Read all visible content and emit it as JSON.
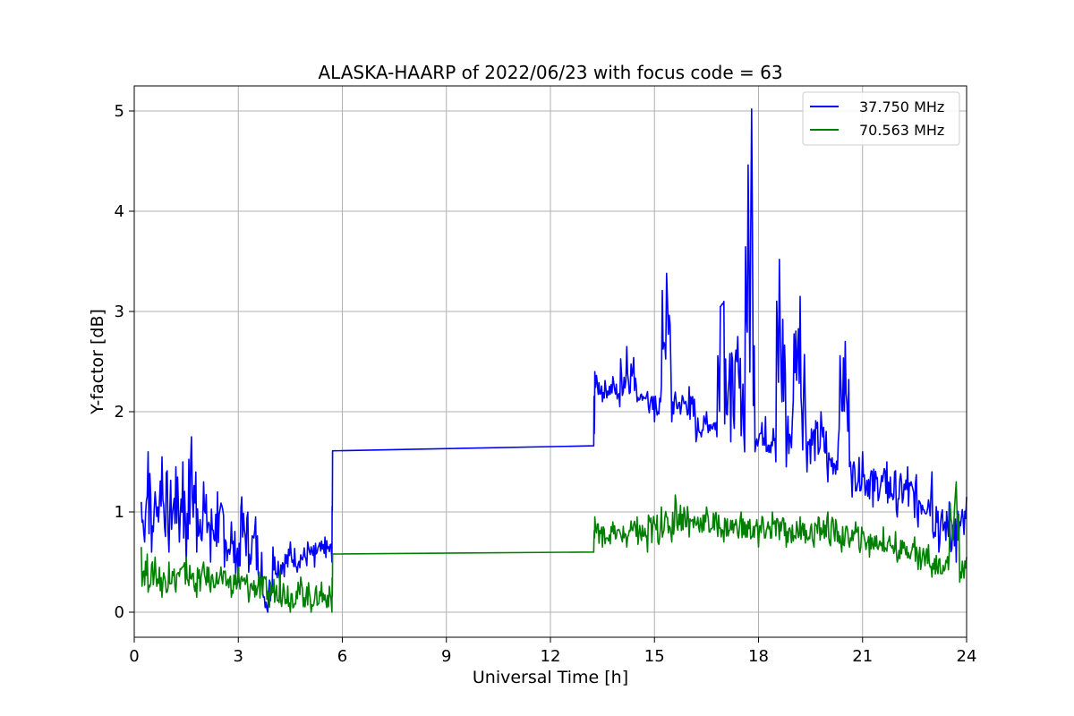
{
  "chart_data": {
    "type": "line",
    "title": "ALASKA-HAARP of 2022/06/23 with focus code = 63",
    "xlabel": "Universal Time [h]",
    "ylabel": "Y-factor [dB]",
    "xlim": [
      0,
      24
    ],
    "ylim": [
      -0.25,
      5.25
    ],
    "xticks": [
      0,
      3,
      6,
      9,
      12,
      15,
      18,
      21,
      24
    ],
    "yticks": [
      0,
      1,
      2,
      3,
      4,
      5
    ],
    "grid": true,
    "legend_position": "top-right",
    "series": [
      {
        "name": "37.750 MHz",
        "color": "#0000ff",
        "points": [
          [
            0.2,
            1.1
          ],
          [
            0.3,
            0.7
          ],
          [
            0.4,
            1.6
          ],
          [
            0.5,
            0.6
          ],
          [
            0.6,
            1.2
          ],
          [
            0.7,
            0.9
          ],
          [
            0.8,
            1.55
          ],
          [
            1.0,
            0.6
          ],
          [
            1.2,
            1.45
          ],
          [
            1.3,
            0.7
          ],
          [
            1.4,
            1.5
          ],
          [
            1.5,
            0.5
          ],
          [
            1.65,
            1.75
          ],
          [
            1.8,
            0.6
          ],
          [
            2.0,
            1.3
          ],
          [
            2.2,
            0.5
          ],
          [
            2.4,
            1.2
          ],
          [
            2.6,
            0.45
          ],
          [
            2.8,
            0.9
          ],
          [
            3.0,
            0.3
          ],
          [
            3.1,
            1.15
          ],
          [
            3.3,
            0.4
          ],
          [
            3.5,
            0.95
          ],
          [
            3.7,
            0.2
          ],
          [
            3.85,
            0.0
          ],
          [
            4.0,
            0.65
          ],
          [
            4.2,
            0.3
          ],
          [
            4.5,
            0.7
          ],
          [
            4.7,
            0.4
          ],
          [
            5.0,
            0.7
          ],
          [
            5.2,
            0.45
          ],
          [
            5.5,
            0.75
          ],
          [
            5.7,
            0.5
          ],
          [
            5.72,
            1.61
          ],
          [
            13.25,
            1.66
          ],
          [
            13.28,
            2.4
          ],
          [
            13.5,
            2.1
          ],
          [
            13.8,
            2.35
          ],
          [
            14.0,
            2.05
          ],
          [
            14.2,
            2.65
          ],
          [
            14.5,
            2.1
          ],
          [
            14.8,
            2.2
          ],
          [
            15.0,
            1.9
          ],
          [
            15.2,
            2.25
          ],
          [
            15.35,
            3.38
          ],
          [
            15.5,
            1.9
          ],
          [
            16.0,
            2.25
          ],
          [
            16.2,
            1.7
          ],
          [
            16.5,
            2.0
          ],
          [
            16.8,
            1.75
          ],
          [
            16.9,
            3.05
          ],
          [
            17.0,
            3.1
          ],
          [
            17.2,
            1.7
          ],
          [
            17.4,
            2.75
          ],
          [
            17.6,
            1.6
          ],
          [
            17.8,
            5.02
          ],
          [
            17.9,
            1.6
          ],
          [
            18.2,
            1.95
          ],
          [
            18.5,
            1.5
          ],
          [
            18.6,
            3.52
          ],
          [
            18.8,
            1.45
          ],
          [
            19.0,
            2.1
          ],
          [
            19.2,
            3.15
          ],
          [
            19.4,
            1.4
          ],
          [
            19.8,
            2.0
          ],
          [
            20.0,
            1.3
          ],
          [
            20.3,
            1.7
          ],
          [
            20.5,
            2.7
          ],
          [
            20.7,
            1.15
          ],
          [
            21.0,
            1.6
          ],
          [
            21.3,
            1.05
          ],
          [
            21.7,
            1.5
          ],
          [
            22.0,
            0.95
          ],
          [
            22.3,
            1.45
          ],
          [
            22.6,
            0.85
          ],
          [
            23.0,
            1.4
          ],
          [
            23.2,
            0.6
          ],
          [
            23.5,
            1.1
          ],
          [
            23.7,
            0.5
          ],
          [
            24.0,
            1.15
          ]
        ]
      },
      {
        "name": "70.563 MHz",
        "color": "#008000",
        "points": [
          [
            0.2,
            0.65
          ],
          [
            0.4,
            0.2
          ],
          [
            0.6,
            0.55
          ],
          [
            0.8,
            0.15
          ],
          [
            1.0,
            0.5
          ],
          [
            1.2,
            0.2
          ],
          [
            1.5,
            0.55
          ],
          [
            1.8,
            0.15
          ],
          [
            2.0,
            0.5
          ],
          [
            2.2,
            0.2
          ],
          [
            2.5,
            0.45
          ],
          [
            2.8,
            0.15
          ],
          [
            3.0,
            0.45
          ],
          [
            3.3,
            0.1
          ],
          [
            3.6,
            0.4
          ],
          [
            3.9,
            0.05
          ],
          [
            4.2,
            0.4
          ],
          [
            4.5,
            0.0
          ],
          [
            4.8,
            0.35
          ],
          [
            5.1,
            0.0
          ],
          [
            5.4,
            0.3
          ],
          [
            5.7,
            0.0
          ],
          [
            5.72,
            0.58
          ],
          [
            13.25,
            0.6
          ],
          [
            13.28,
            0.95
          ],
          [
            13.5,
            0.65
          ],
          [
            13.8,
            0.9
          ],
          [
            14.2,
            0.65
          ],
          [
            14.5,
            0.95
          ],
          [
            14.8,
            0.6
          ],
          [
            15.2,
            1.05
          ],
          [
            15.5,
            0.7
          ],
          [
            15.6,
            1.17
          ],
          [
            16.0,
            0.75
          ],
          [
            16.5,
            1.05
          ],
          [
            17.0,
            0.7
          ],
          [
            17.5,
            1.0
          ],
          [
            18.0,
            0.65
          ],
          [
            18.4,
            1.0
          ],
          [
            18.8,
            0.65
          ],
          [
            19.2,
            0.95
          ],
          [
            19.6,
            0.65
          ],
          [
            20.0,
            1.0
          ],
          [
            20.4,
            0.6
          ],
          [
            20.8,
            0.9
          ],
          [
            21.2,
            0.55
          ],
          [
            21.6,
            0.85
          ],
          [
            22.0,
            0.5
          ],
          [
            22.5,
            0.75
          ],
          [
            23.0,
            0.35
          ],
          [
            23.5,
            0.6
          ],
          [
            23.7,
            1.3
          ],
          [
            23.8,
            0.3
          ],
          [
            24.0,
            0.55
          ]
        ]
      }
    ]
  }
}
